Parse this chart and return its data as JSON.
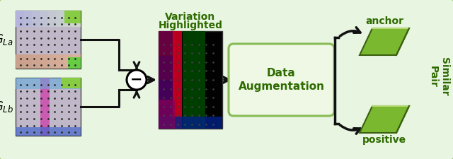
{
  "bg_color": "#e8f5e0",
  "border_color": "#a0c870",
  "gla_label": "$G_{La}$",
  "glb_label": "$G_{Lb}$",
  "variation_text_1": "Variation",
  "variation_text_2": "Highlighted",
  "data_aug_text_1": "Data",
  "data_aug_text_2": "Augmentation",
  "anchor_label": "anchor",
  "positive_label": "positive",
  "similar_pair_label": "Similar\nPair",
  "minus_symbol": "−",
  "arrow_color": "#111111",
  "dark_green_text": "#2d6a00",
  "box_bg": "#eef8e4",
  "box_border": "#88bb55",
  "para_face": "#7ab830",
  "para_edge": "#3a6010",
  "para_top": "#b8d878",
  "img_top_colors": [
    "#c8a8d0",
    "#c8c8e0",
    "#d0c8b8",
    "#b8d8c8"
  ],
  "img_bot_colors": [
    "#c0a8c8",
    "#b8b8d8",
    "#c8c8b8",
    "#b8c8c0"
  ],
  "figsize": [
    6.4,
    2.25
  ],
  "dpi": 100
}
